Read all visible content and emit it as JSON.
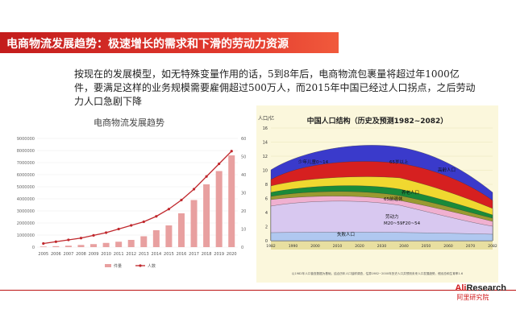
{
  "slide": {
    "title": "电商物流发展趋势：极速增长的需求和下滑的劳动力资源",
    "body": "按现在的发展模型，如无特殊变量作用的话，5到8年后，电商物流包裹量将超过年1000亿件，要满足这样的业务规模需要雇佣超过500万人，而2015年中国已经过人口拐点，之后劳动力人口急剧下降"
  },
  "brand": {
    "name_prefix": "Ali",
    "name_suffix": "Research",
    "sub": "阿里研究院"
  },
  "chart_data": [
    {
      "type": "bar",
      "title": "电商物流发展趋势",
      "categories": [
        "2005",
        "2006",
        "2007",
        "2008",
        "2009",
        "2010",
        "2011",
        "2012",
        "2013",
        "2014",
        "2015",
        "2016",
        "2017",
        "2018",
        "2019",
        "2020"
      ],
      "left_ticks": [
        "0",
        "1000000",
        "2000000",
        "3000000",
        "4000000",
        "5000000",
        "6000000",
        "7000000",
        "8000000",
        "9000000"
      ],
      "right_ticks": [
        "0",
        "10",
        "20",
        "30",
        "40",
        "50",
        "60"
      ],
      "ylim_left": [
        0,
        9000000
      ],
      "ylim_right": [
        0,
        60
      ],
      "series": [
        {
          "name": "件量",
          "type": "bar",
          "axis": "left",
          "color": "#e8a0a0",
          "values": [
            50000,
            80000,
            120000,
            180000,
            250000,
            350000,
            450000,
            600000,
            900000,
            1400000,
            1800000,
            2800000,
            3900000,
            5200000,
            6300000,
            7600000
          ]
        },
        {
          "name": "人数",
          "type": "line",
          "axis": "right",
          "color": "#c0282d",
          "values": [
            2,
            3,
            4,
            5,
            6.5,
            8,
            10,
            12,
            14,
            17,
            21,
            26,
            32,
            39,
            46,
            53
          ]
        }
      ],
      "legend_position": "bottom"
    },
    {
      "type": "area",
      "title": "中国人口结构（历史及预测1982~2082）",
      "ylabel": "人口/亿",
      "y_ticks": [
        "16",
        "14",
        "12",
        "10",
        "8",
        "6",
        "4",
        "2",
        "0"
      ],
      "x_ticks": [
        "1982",
        "1990",
        "2000",
        "2010",
        "2020",
        "2030",
        "2040",
        "2050",
        "2060",
        "2070",
        "2082"
      ],
      "annotations": [
        "少年儿童0~14",
        "65岁以上",
        "高龄人口",
        "养老人口",
        "65前退休",
        "劳动力",
        "M20~59F20~54",
        "失败人口"
      ],
      "note": "以1982年人口普查数据为基础，结合历年人口抽样调查，估算1982~2000年历史人口并预测未来人口发展趋势，假设总和生育率1.6",
      "colors": {
        "background": "#f7f0c0",
        "top": "#3a3acb",
        "red": "#d62020",
        "yellow": "#f0d830",
        "green": "#1a8a3a",
        "olive": "#9a9a30",
        "pink": "#f0b0d0",
        "lavender": "#d8c8f0",
        "lightblue": "#b0c8f0"
      }
    }
  ]
}
